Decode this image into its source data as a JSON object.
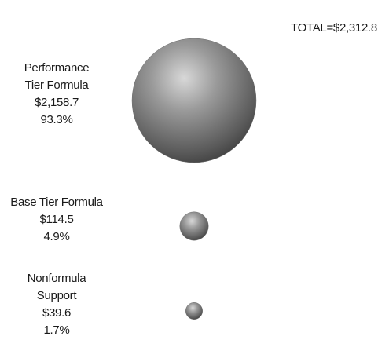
{
  "chart_data": {
    "type": "bubble",
    "total": "TOTAL=$2,312.8",
    "categories": [
      "Performance Tier Formula",
      "Base Tier Formula",
      "Nonformula Support"
    ],
    "values": [
      2158.7,
      114.5,
      39.6
    ],
    "value_labels": [
      "$2,158.7",
      "$114.5",
      "$39.6"
    ],
    "shares": [
      93.3,
      4.9,
      1.7
    ],
    "share_labels": [
      "93.3%",
      "4.9%",
      "1.7%"
    ],
    "color": "#6e6e6e"
  }
}
